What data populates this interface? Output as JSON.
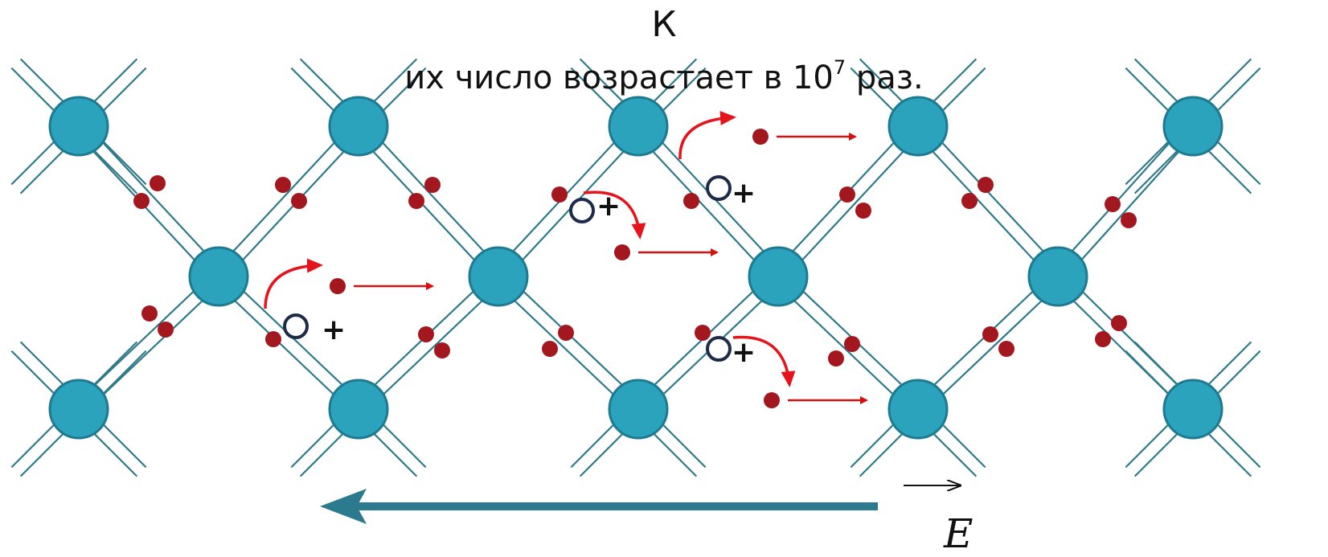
{
  "heading": {
    "line1": "К",
    "line2_text": "их  число возрастает в 10",
    "line2_exponent": "7",
    "line2_suffix": " раз."
  },
  "field_label": "E",
  "lattice": {
    "bond_color": "#2f7a8a",
    "atom_color": "#2ba3bd",
    "atom_stroke": "#1e7a90",
    "electron_color": "#a3171f",
    "hole_stroke": "#1c2b4a",
    "carrier_arrow_color": "#d60f0f",
    "field_arrow_color": "#2b7a8e"
  },
  "holes": [
    {
      "label": "+"
    },
    {
      "label": "+"
    },
    {
      "label": "+"
    },
    {
      "label": "+"
    }
  ]
}
